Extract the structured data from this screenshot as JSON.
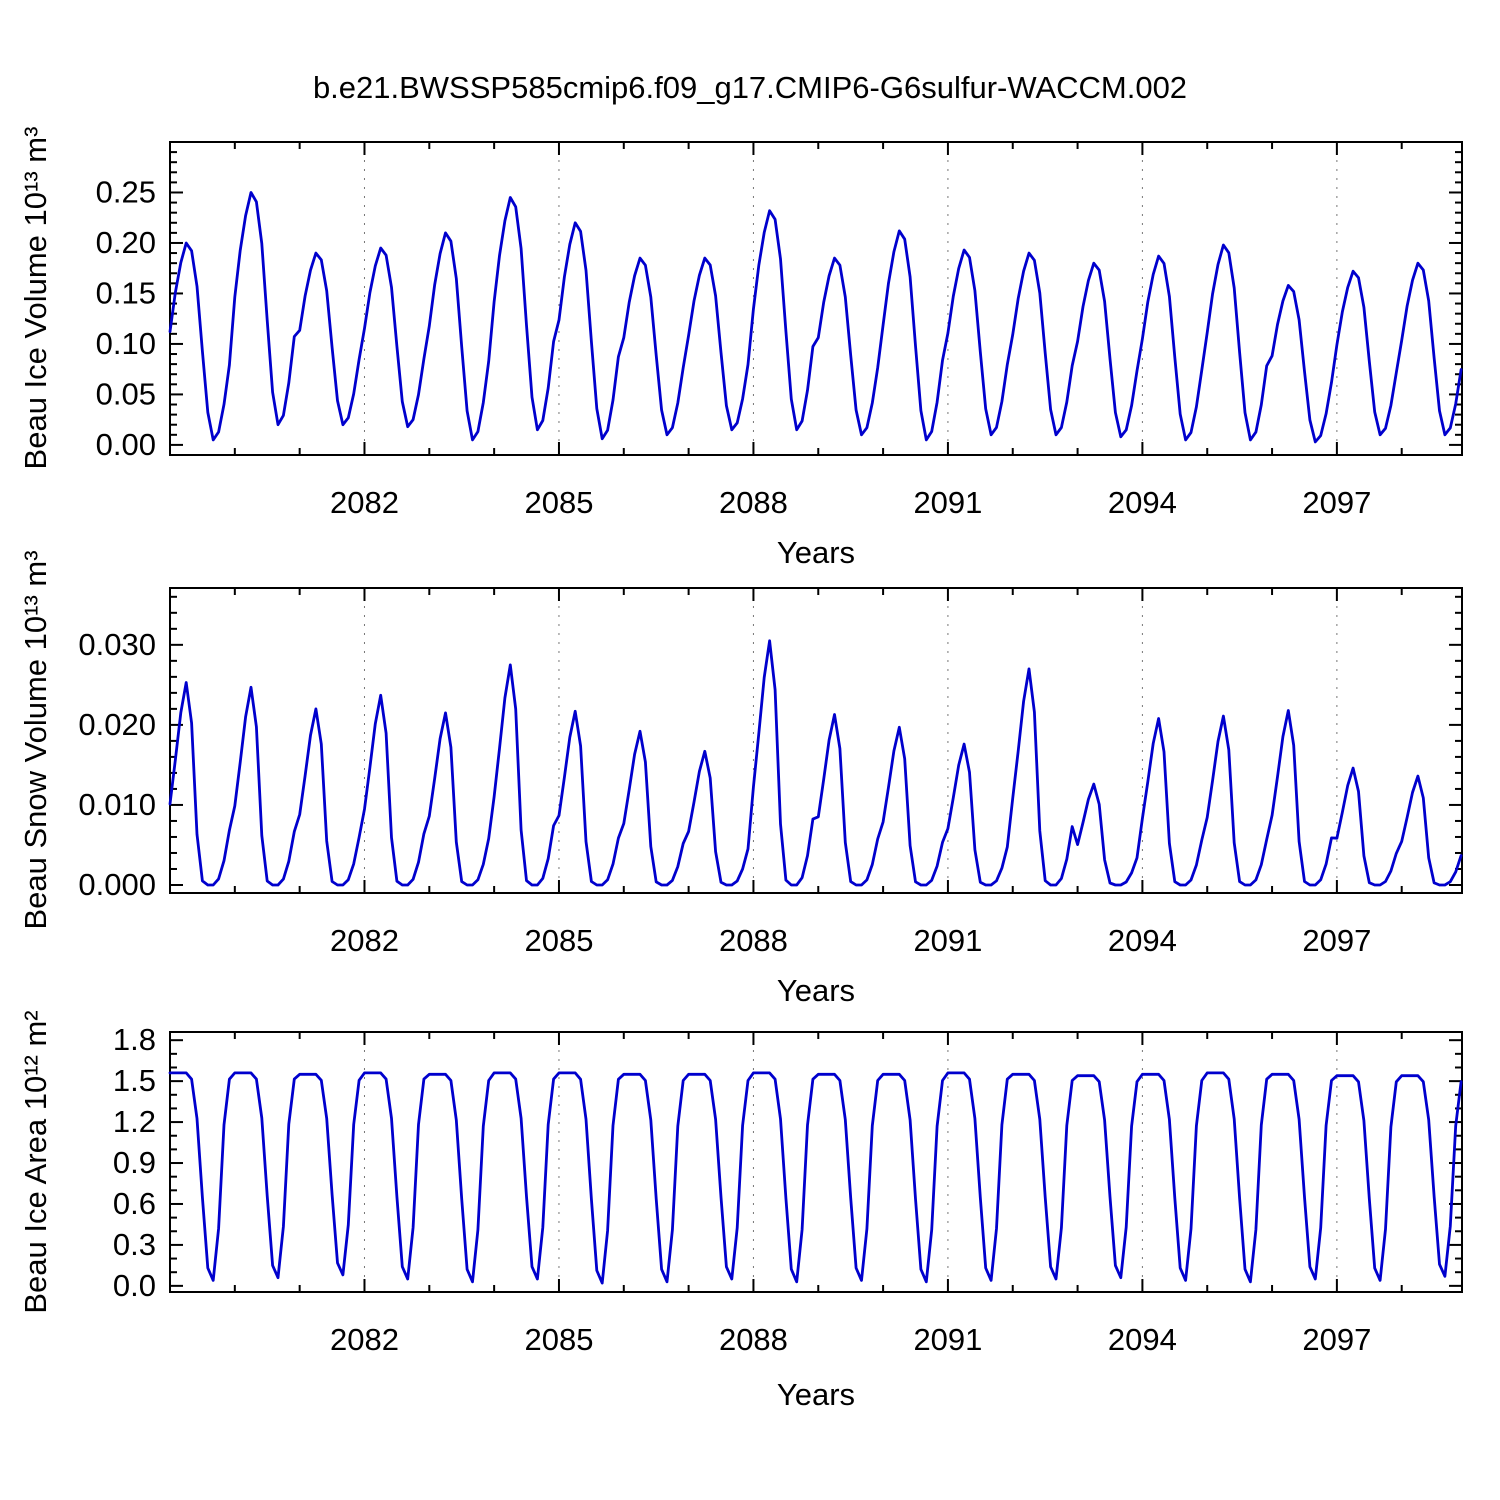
{
  "figure": {
    "title": "b.e21.BWSSP585cmip6.f09_g17.CMIP6-G6sulfur-WACCM.002",
    "time_resolution": "monthly",
    "line_color": "#0000cd"
  },
  "chart_data": [
    {
      "type": "line",
      "name": "beau-ice-volume",
      "ylabel": "Beau Ice Volume 10¹³ m³",
      "xlabel": "Years",
      "line_color": "#0000cd",
      "xlim": [
        2079.0,
        2098.93
      ],
      "ylim": [
        -0.01,
        0.3
      ],
      "xtick_values": [
        2082,
        2085,
        2088,
        2091,
        2094,
        2097
      ],
      "xminor_step": 1,
      "ytick_values": [
        0.0,
        0.05,
        0.1,
        0.15,
        0.2,
        0.25
      ],
      "ytick_decimals": 2,
      "yminor_step": 0.01,
      "grid": true,
      "years": [
        2079,
        2080,
        2081,
        2082,
        2083,
        2084,
        2085,
        2086,
        2087,
        2088,
        2089,
        2090,
        2091,
        2092,
        2093,
        2094,
        2095,
        2096,
        2097,
        2098
      ],
      "annual_peaks": [
        0.2,
        0.25,
        0.19,
        0.195,
        0.21,
        0.245,
        0.22,
        0.185,
        0.185,
        0.232,
        0.185,
        0.212,
        0.193,
        0.19,
        0.18,
        0.187,
        0.198,
        0.158,
        0.172,
        0.18
      ],
      "annual_minima": [
        0.005,
        0.02,
        0.02,
        0.018,
        0.005,
        0.015,
        0.006,
        0.01,
        0.015,
        0.015,
        0.01,
        0.005,
        0.01,
        0.01,
        0.008,
        0.005,
        0.005,
        0.003,
        0.01,
        0.01
      ],
      "monthly_shape": [
        0.55,
        0.75,
        0.9,
        1.0,
        0.96,
        0.78,
        0.45,
        0.14,
        0.0,
        0.04,
        0.18,
        0.38
      ]
    },
    {
      "type": "line",
      "name": "beau-snow-volume",
      "ylabel": "Beau Snow Volume 10¹³ m³",
      "xlabel": "Years",
      "line_color": "#0000cd",
      "xlim": [
        2079.0,
        2098.93
      ],
      "ylim": [
        -0.001,
        0.0371
      ],
      "xtick_values": [
        2082,
        2085,
        2088,
        2091,
        2094,
        2097
      ],
      "xminor_step": 1,
      "ytick_values": [
        0.0,
        0.01,
        0.02,
        0.03
      ],
      "ytick_decimals": 3,
      "yminor_step": 0.002,
      "grid": true,
      "years": [
        2079,
        2080,
        2081,
        2082,
        2083,
        2084,
        2085,
        2086,
        2087,
        2088,
        2089,
        2090,
        2091,
        2092,
        2093,
        2094,
        2095,
        2096,
        2097,
        2098
      ],
      "annual_peaks": [
        0.0253,
        0.0247,
        0.022,
        0.0237,
        0.0215,
        0.0275,
        0.0217,
        0.0192,
        0.0167,
        0.0305,
        0.0213,
        0.0197,
        0.0176,
        0.027,
        0.0126,
        0.0208,
        0.0211,
        0.0218,
        0.0146,
        0.0136
      ],
      "annual_minima": [
        0,
        0,
        0,
        0,
        0,
        0,
        0,
        0,
        0,
        0,
        0,
        0,
        0,
        0,
        0,
        0,
        0,
        0,
        0,
        0
      ],
      "monthly_shape": [
        0.4,
        0.62,
        0.85,
        1.0,
        0.8,
        0.25,
        0.02,
        0.0,
        0.0,
        0.03,
        0.12,
        0.27
      ]
    },
    {
      "type": "line",
      "name": "beau-ice-area",
      "ylabel": "Beau Ice Area 10¹² m²",
      "xlabel": "Years",
      "line_color": "#0000cd",
      "xlim": [
        2079.0,
        2098.93
      ],
      "ylim": [
        -0.045,
        1.86
      ],
      "xtick_values": [
        2082,
        2085,
        2088,
        2091,
        2094,
        2097
      ],
      "xminor_step": 1,
      "ytick_values": [
        0.0,
        0.3,
        0.6,
        0.9,
        1.2,
        1.5,
        1.8
      ],
      "ytick_decimals": 1,
      "yminor_step": 0.1,
      "grid": true,
      "years": [
        2079,
        2080,
        2081,
        2082,
        2083,
        2084,
        2085,
        2086,
        2087,
        2088,
        2089,
        2090,
        2091,
        2092,
        2093,
        2094,
        2095,
        2096,
        2097,
        2098
      ],
      "annual_peaks": [
        1.56,
        1.56,
        1.55,
        1.56,
        1.55,
        1.56,
        1.56,
        1.55,
        1.55,
        1.56,
        1.55,
        1.55,
        1.56,
        1.55,
        1.54,
        1.55,
        1.56,
        1.55,
        1.54,
        1.54
      ],
      "annual_minima": [
        0.04,
        0.06,
        0.08,
        0.05,
        0.03,
        0.05,
        0.02,
        0.03,
        0.05,
        0.03,
        0.04,
        0.03,
        0.04,
        0.05,
        0.06,
        0.04,
        0.03,
        0.05,
        0.04,
        0.07
      ],
      "monthly_shape": [
        1.0,
        1.0,
        1.0,
        1.0,
        0.97,
        0.78,
        0.4,
        0.06,
        0.0,
        0.25,
        0.75,
        0.97
      ]
    }
  ]
}
